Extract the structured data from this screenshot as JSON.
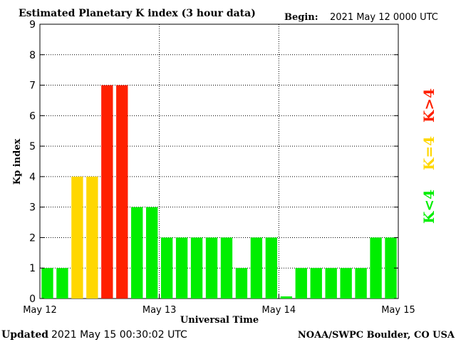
{
  "chart_data": {
    "type": "bar",
    "title": "Estimated Planetary K index (3 hour data)",
    "begin_label": "Begin:",
    "begin_value": "2021 May 12 0000 UTC",
    "xlabel": "Universal Time",
    "ylabel": "Kp index",
    "ylim": [
      0,
      9
    ],
    "yticks": [
      "0",
      "1",
      "2",
      "3",
      "4",
      "5",
      "6",
      "7",
      "8",
      "9"
    ],
    "xticks": [
      "May 12",
      "May 13",
      "May 14",
      "May 15"
    ],
    "grid": true,
    "values": [
      1,
      1,
      4,
      4,
      7,
      7,
      3,
      3,
      2,
      2,
      2,
      2,
      2,
      1,
      2,
      2,
      0.07,
      1,
      1,
      1,
      1,
      1,
      2,
      2
    ],
    "legend": [
      {
        "label": "K<4",
        "color": "#00ee00"
      },
      {
        "label": "K=4",
        "color": "#ffd700"
      },
      {
        "label": "K>4",
        "color": "#ff2000"
      }
    ],
    "updated_label": "Updated",
    "updated_value": "2021 May 15 00:30:02 UTC",
    "source": "NOAA/SWPC Boulder, CO USA"
  }
}
